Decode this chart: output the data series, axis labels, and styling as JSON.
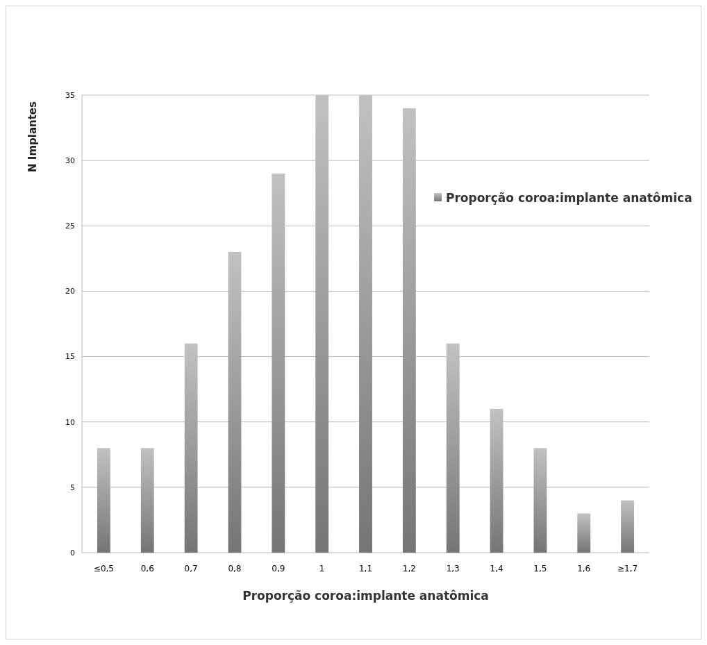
{
  "chart_data": {
    "type": "bar",
    "xlabel": "Proporção coroa:implante anatômica",
    "ylabel": "N Implantes",
    "categories": [
      "≤0,5",
      "0,6",
      "0,7",
      "0,8",
      "0,9",
      "1",
      "1,1",
      "1,2",
      "1,3",
      "1,4",
      "1,5",
      "1,6",
      "≥1,7"
    ],
    "series": [
      {
        "name": "Proporção coroa:implante anatômica",
        "color": "#8c8c8c",
        "values": [
          8,
          8,
          16,
          23,
          29,
          35,
          35,
          34,
          16,
          11,
          8,
          3,
          4
        ]
      }
    ],
    "ylim": [
      0,
      35
    ],
    "yticks": [
      0,
      5,
      10,
      15,
      20,
      25,
      30,
      35
    ],
    "grid": "y",
    "legend": "top right"
  }
}
